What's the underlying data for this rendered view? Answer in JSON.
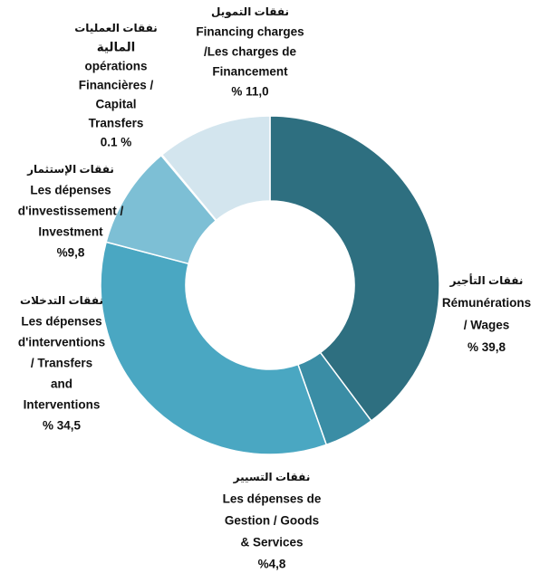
{
  "chart_data": {
    "type": "donut",
    "categories": [
      [
        "نفقات التأجير",
        "Rémunérations",
        "/  Wages"
      ],
      [
        "نفقات التسيير",
        "Les dépenses de",
        "Gestion /  Goods",
        "& Services"
      ],
      [
        "نفقات التدخلات",
        "Les dépenses",
        "d'interventions",
        "/  Transfers",
        "and",
        "Interventions"
      ],
      [
        "نفقات الإستثمار",
        "Les dépenses",
        "d'investissement /",
        "Investment"
      ],
      [
        "نفقات العمليات",
        "المالية",
        "opérations",
        "Financières  /",
        "Capital",
        "Transfers"
      ],
      [
        "نفقات التمويل",
        "Financing charges",
        "/Les charges de",
        "Financement"
      ]
    ],
    "values": [
      39.8,
      4.8,
      34.5,
      9.8,
      0.1,
      11.0
    ],
    "value_labels": [
      "% 39,8",
      "%4,8",
      "% 34,5",
      "%9,8",
      "0.1 %",
      "% 11,0"
    ],
    "colors": [
      "#2e6f80",
      "#3a8da5",
      "#4aa7c2",
      "#7dbfd5",
      "#a9d3e1",
      "#d3e5ee"
    ]
  }
}
